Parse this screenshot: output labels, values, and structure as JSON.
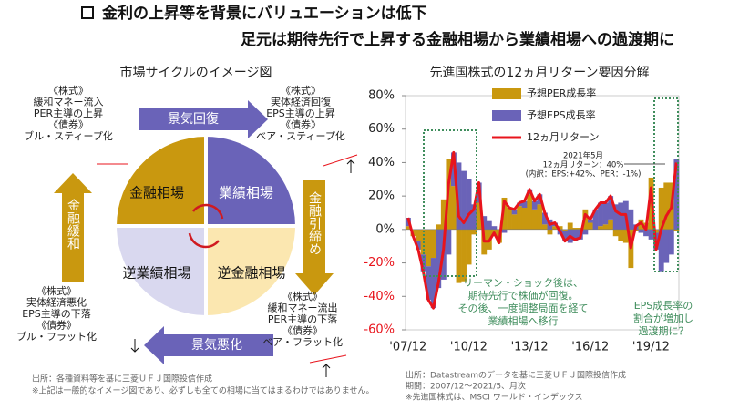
{
  "header": {
    "title_lines": [
      "金利の上昇等を背景にバリュエーションは低下",
      "足元は期待先行で上昇する金融相場から業績相場への過渡期に"
    ]
  },
  "diagram": {
    "title": "市場サイクルのイメージ図",
    "quadrants": [
      "金融相場",
      "業績相場",
      "逆業績相場",
      "逆金融相場"
    ],
    "arrows": [
      "景気回復",
      "金融引締め",
      "景気悪化",
      "金融緩和"
    ],
    "notes": {
      "top_left": [
        "《株式》",
        "緩和マネー流入",
        "PER主導の上昇",
        "《債券》",
        "ブル・スティープ化"
      ],
      "top_right": [
        "《株式》",
        "実体経済回復",
        "EPS主導の上昇",
        "《債券》",
        "ベア・スティープ化"
      ],
      "bottom_left": [
        "《株式》",
        "実体経済悪化",
        "EPS主導の下落",
        "《債券》",
        "ブル・フラット化"
      ],
      "bottom_right": [
        "《株式》",
        "緩和マネー流出",
        "PER主導の下落",
        "《債券》",
        "ベア・フラット化"
      ]
    },
    "footnotes": [
      "出所：各種資料等を基に三菱ＵＦＪ国際投信作成",
      "※上記は一般的なイメージ図であり、必ずしも全ての相場に当てはまるわけではありません。"
    ]
  },
  "chart_data": {
    "type": "bar",
    "title": "先進国株式の12ヵ月リターン要因分解",
    "categories": [
      "'07/12",
      null,
      null,
      null,
      null,
      null,
      null,
      null,
      null,
      null,
      null,
      null,
      "'10/12",
      null,
      null,
      null,
      null,
      null,
      null,
      null,
      null,
      null,
      null,
      null,
      "'13/12",
      null,
      null,
      null,
      null,
      null,
      null,
      null,
      null,
      null,
      null,
      null,
      "'16/12",
      null,
      null,
      null,
      null,
      null,
      null,
      null,
      null,
      null,
      null,
      null,
      "'19/12",
      null,
      null,
      null,
      null,
      null
    ],
    "series": [
      {
        "name": "予想PER成長率",
        "type": "bar",
        "color": "#c9980f",
        "values": [
          2,
          -4,
          -7,
          -15,
          -22,
          -17,
          3,
          18,
          42,
          26,
          -32,
          -31,
          -21,
          -3,
          16,
          -15,
          -12,
          -4,
          -8,
          19,
          13,
          9,
          14,
          13,
          21,
          12,
          15,
          3,
          -3,
          2,
          2,
          -1,
          4,
          1,
          1,
          12,
          4,
          0,
          2,
          3,
          6,
          -4,
          -7,
          -8,
          -23,
          -1,
          6,
          4,
          31,
          -2,
          25,
          28,
          28,
          -1
        ]
      },
      {
        "name": "予想EPS成長率",
        "type": "bar",
        "color": "#6a63b8",
        "values": [
          5,
          0,
          -5,
          -10,
          -20,
          -30,
          -35,
          -30,
          -15,
          20,
          40,
          35,
          30,
          15,
          12,
          8,
          5,
          2,
          0,
          -2,
          0,
          3,
          2,
          4,
          3,
          5,
          6,
          7,
          6,
          2,
          -3,
          -6,
          -8,
          -7,
          -6,
          -3,
          2,
          12,
          14,
          13,
          14,
          15,
          16,
          17,
          12,
          3,
          -2,
          -4,
          -6,
          -10,
          -25,
          -20,
          -15,
          42
        ]
      },
      {
        "name": "12ヵ月リターン",
        "type": "line",
        "color": "#e8141c",
        "values": [
          7,
          -4,
          -12,
          -25,
          -42,
          -47,
          -32,
          -12,
          27,
          46,
          8,
          4,
          9,
          12,
          28,
          -7,
          -7,
          -2,
          -8,
          17,
          13,
          12,
          16,
          17,
          24,
          17,
          21,
          10,
          3,
          4,
          -1,
          -7,
          -4,
          -6,
          -5,
          9,
          6,
          12,
          16,
          16,
          20,
          11,
          9,
          9,
          -11,
          2,
          4,
          0,
          25,
          -12,
          0,
          8,
          13,
          40
        ]
      }
    ],
    "ylim": [
      -60,
      80
    ],
    "yticks": [
      {
        "value": -60,
        "label": "-60%"
      },
      {
        "value": -40,
        "label": "-40%"
      },
      {
        "value": -20,
        "label": "-20%"
      },
      {
        "value": 0,
        "label": "0%"
      },
      {
        "value": 20,
        "label": "20%"
      },
      {
        "value": 40,
        "label": "40%"
      },
      {
        "value": 60,
        "label": "60%"
      },
      {
        "value": 80,
        "label": "80%"
      }
    ],
    "negative_tick_color": "#e8141c",
    "annotations": {
      "latest": [
        "2021年5月",
        "12ヵ月リターン：40%",
        "(内訳：EPS:+42%、PER：-1%)"
      ],
      "lehman": [
        "リーマン・ショック後は、",
        "期待先行で株価が回復。",
        "その後、一度調整局面を経て",
        "業績相場へ移行"
      ],
      "recent": [
        "EPS成長率の",
        "割合が増加し",
        "過渡期に？"
      ]
    },
    "footnotes": [
      "出所：Datastreamのデータを基に三菱ＵＦＪ国際投信作成",
      "期間：2007/12～2021/5、月次",
      "※先進国株式は、MSCI ワールド・インデックス"
    ]
  }
}
